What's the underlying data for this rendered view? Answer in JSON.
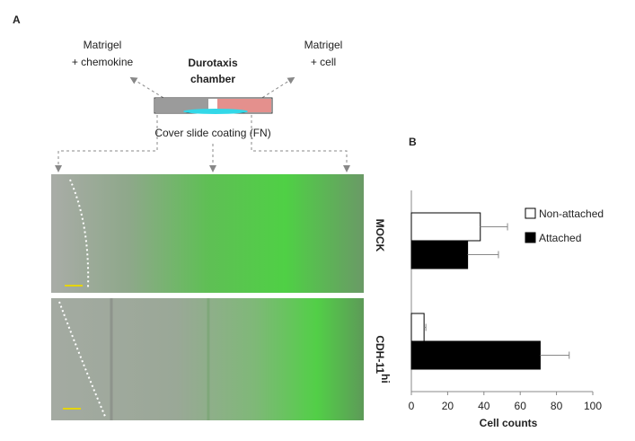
{
  "panel_a": {
    "label": "A",
    "left_medium": [
      "Matrigel",
      "+ chemokine"
    ],
    "chamber": [
      "Durotaxis",
      "chamber"
    ],
    "right_medium": [
      "Matrigel",
      "+ cell"
    ],
    "coating": "Cover slide coating (FN)",
    "row_labels": [
      {
        "main": "MOCK"
      },
      {
        "main": "CDH-11",
        "sup": "hi"
      }
    ]
  },
  "chart_data": {
    "type": "hbar",
    "panel_label": "B",
    "categories": [
      null,
      null
    ],
    "series": [
      {
        "name": "Non-attached",
        "color": "#ffffff",
        "values": [
          38,
          7
        ],
        "errors": [
          15,
          1
        ]
      },
      {
        "name": "Attached",
        "color": "#000000",
        "values": [
          31,
          71
        ],
        "errors": [
          17,
          16
        ]
      }
    ],
    "xlabel": "Cell counts",
    "xlim": [
      0,
      100
    ],
    "xticks": [
      0,
      20,
      40,
      60,
      80,
      100
    ],
    "legend": "upper right"
  }
}
